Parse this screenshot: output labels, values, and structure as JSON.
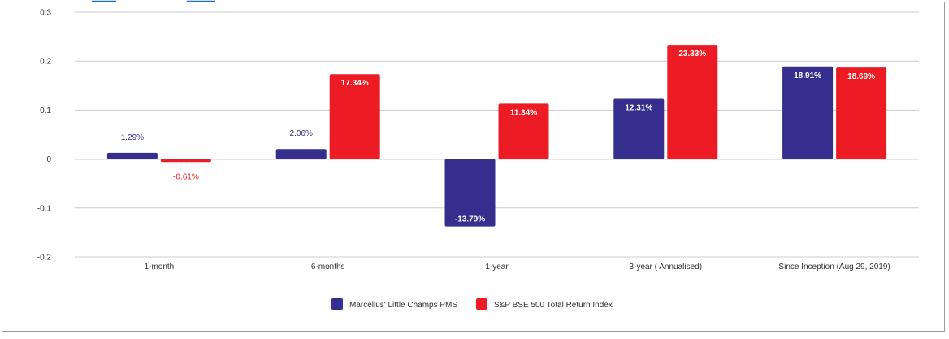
{
  "chart_data": {
    "type": "bar",
    "categories": [
      "1-month",
      "6-months",
      "1-year",
      "3-year ( Annualised)",
      "Since Inception (Aug 29, 2019)"
    ],
    "series": [
      {
        "name": "Marcellus' Little Champs PMS",
        "color": "#352e8e",
        "values": [
          0.0129,
          0.0206,
          -0.1379,
          0.1231,
          0.1891
        ],
        "labels": [
          "1.29%",
          "2.06%",
          "-13.79%",
          "12.31%",
          "18.91%"
        ]
      },
      {
        "name": "S&P BSE 500 Total Return Index",
        "color": "#ed1c24",
        "values": [
          -0.0061,
          0.1734,
          0.1134,
          0.2333,
          0.1869
        ],
        "labels": [
          "-0.61%",
          "17.34%",
          "11.34%",
          "23.33%",
          "18.69%"
        ]
      }
    ],
    "yticks": [
      0.3,
      0.2,
      0.1,
      0,
      -0.1,
      -0.2
    ],
    "ytick_labels": [
      "0.3",
      "0.2",
      "0.1",
      "0",
      "-0.1",
      "-0.2"
    ],
    "ylim": [
      -0.2,
      0.3
    ],
    "grid": true,
    "legend": "bottom-center",
    "title": "",
    "xlabel": "",
    "ylabel": ""
  }
}
